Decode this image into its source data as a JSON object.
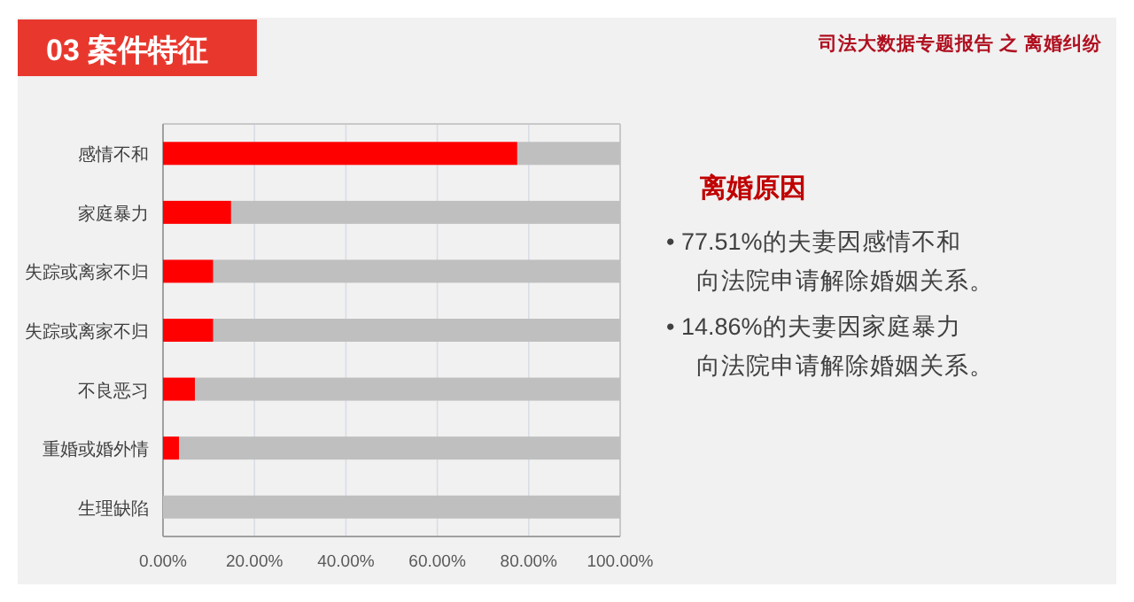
{
  "chart_data": {
    "type": "bar",
    "orientation": "horizontal",
    "stacked": true,
    "title": "03  案件特征",
    "subtitle": "司法大数据专题报告 之 离婚纠纷",
    "categories": [
      "感情不和",
      "家庭暴力",
      "失踪或离家不归",
      "失踪或离家不归",
      "不良恶习",
      "重婚或婚外情",
      "生理缺陷"
    ],
    "series": [
      {
        "color": "#ff0000",
        "values": [
          77.5,
          14.9,
          11,
          11,
          7,
          3.5,
          0
        ]
      },
      {
        "color": "#bfbfbf",
        "values": [
          22.5,
          85.1,
          89,
          89,
          93,
          96.5,
          100
        ]
      }
    ],
    "xlim": [
      0,
      100
    ],
    "xticks": [
      {
        "value": 0,
        "label": "0.00%"
      },
      {
        "value": 20,
        "label": "20.00%"
      },
      {
        "value": 40,
        "label": "40.00%"
      },
      {
        "value": 60,
        "label": "60.00%"
      },
      {
        "value": 80,
        "label": "80.00%"
      },
      {
        "value": 100,
        "label": "100.00%"
      }
    ],
    "grid": "x",
    "annotations": [
      "离婚原因",
      "• 77.51%的夫妻因感情不和",
      "向法院申请解除婚姻关系。",
      "• 14.86%的夫妻因家庭暴力",
      "向法院申请解除婚姻关系。"
    ]
  }
}
